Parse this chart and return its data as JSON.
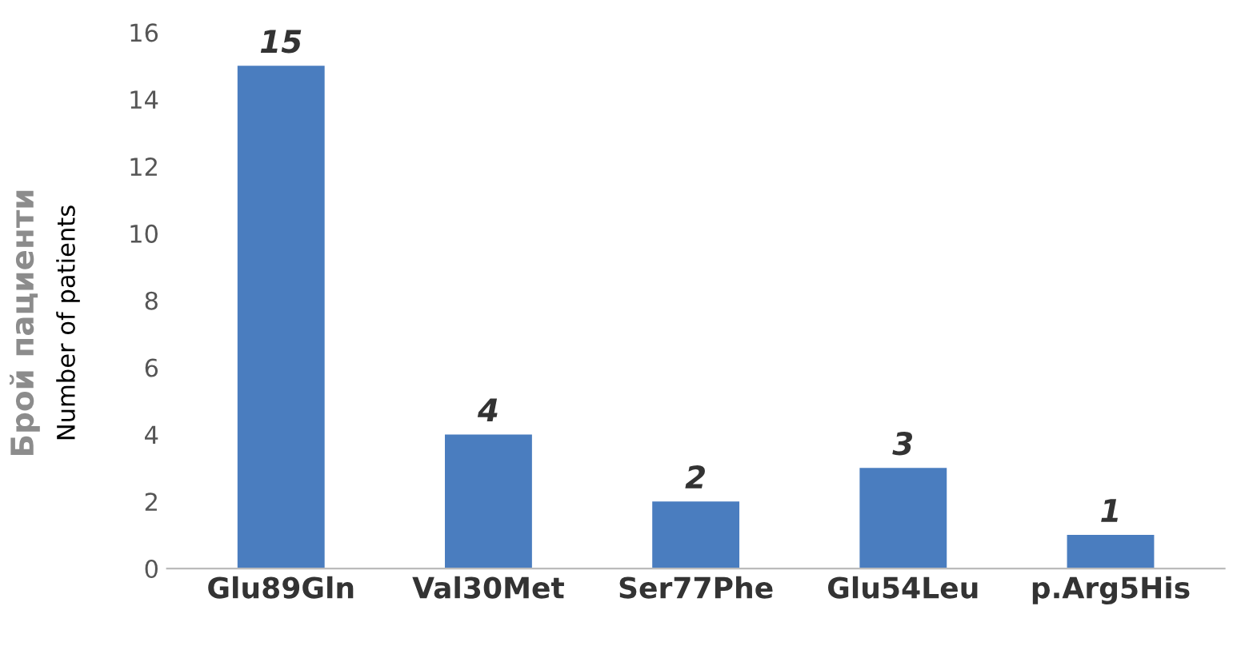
{
  "chart_data": {
    "type": "bar",
    "categories": [
      "Glu89Gln",
      "Val30Met",
      "Ser77Phe",
      "Glu54Leu",
      "p.Arg5His"
    ],
    "values": [
      15,
      4,
      2,
      3,
      1
    ],
    "color": "#4a7dbf",
    "ylabel": "Брой пациенти\nNumber of patients",
    "ylim": [
      0,
      16
    ],
    "yticks": [
      0,
      2,
      4,
      6,
      8,
      10,
      12,
      14,
      16
    ],
    "data_labels": true,
    "grid": false
  }
}
